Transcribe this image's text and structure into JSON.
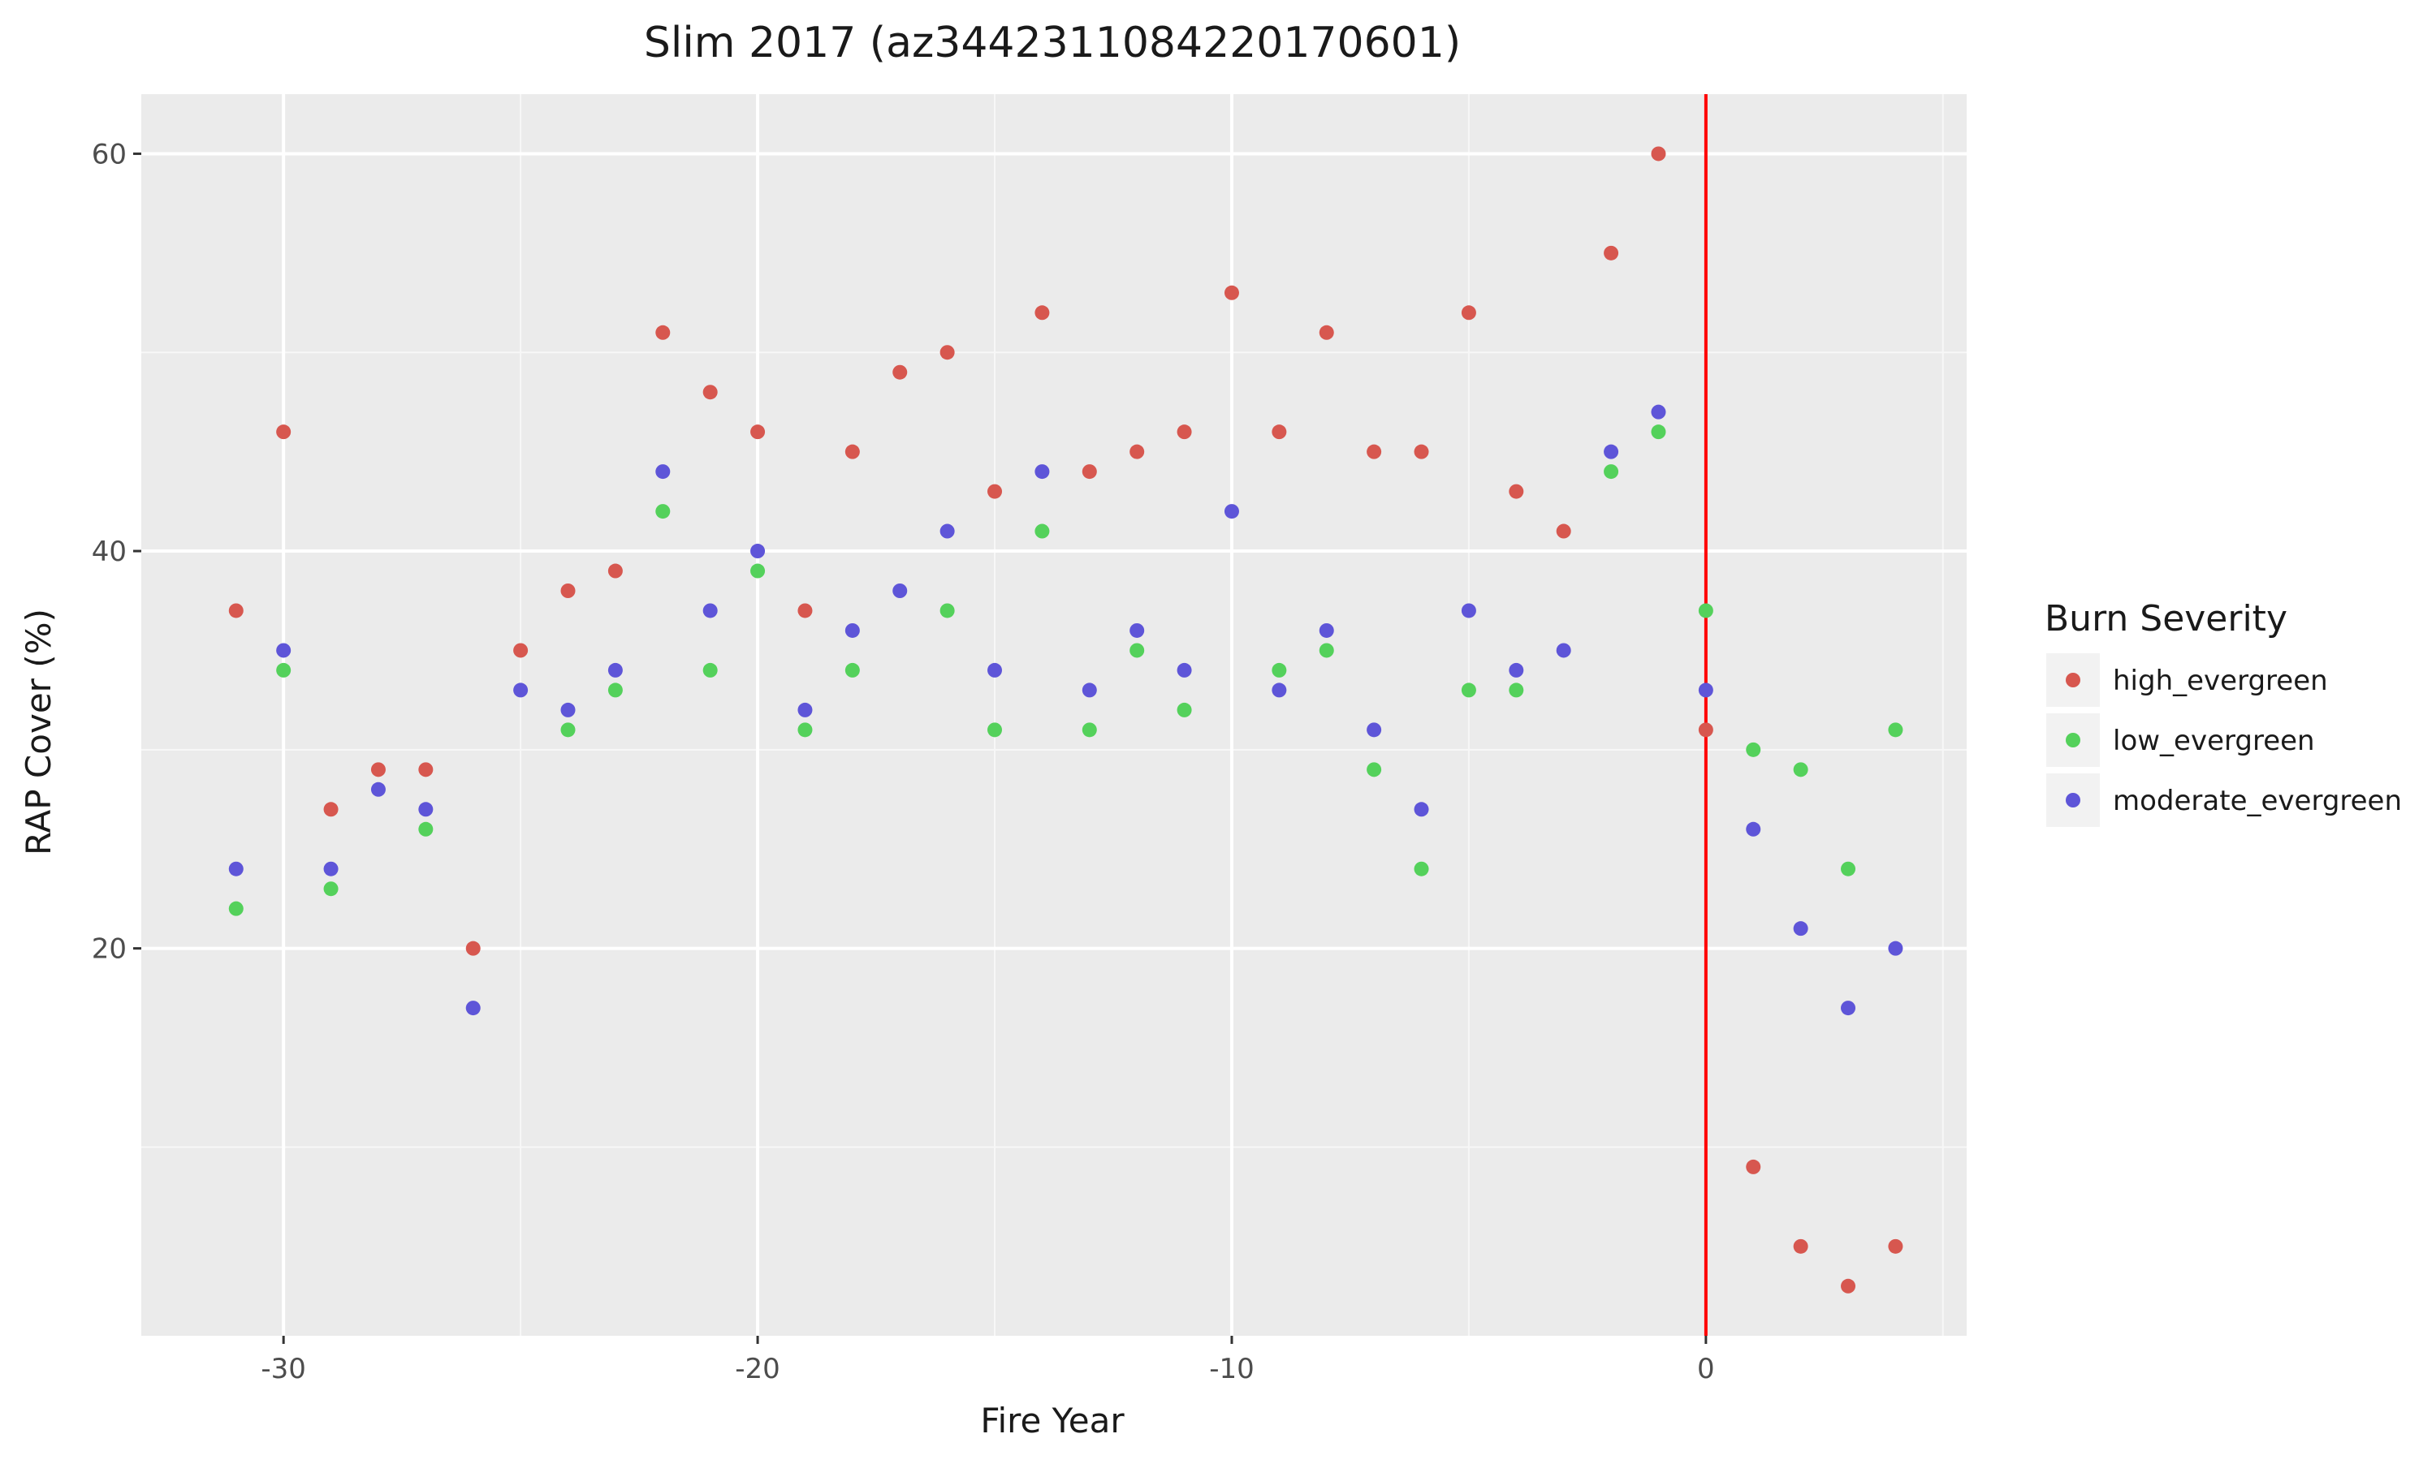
{
  "chart_data": {
    "type": "scatter",
    "title": "Slim 2017 (az34423110842201706​01)",
    "xlabel": "Fire Year",
    "ylabel": "RAP Cover (%)",
    "xlim": [
      -33,
      5.5
    ],
    "ylim": [
      0.5,
      63
    ],
    "x_ticks": [
      -30,
      -20,
      -10,
      0
    ],
    "y_ticks": [
      20,
      40,
      60
    ],
    "grid": true,
    "vline": {
      "x": 0,
      "color": "#ff0000"
    },
    "legend": {
      "title": "Burn Severity",
      "position": "right"
    },
    "series": [
      {
        "name": "high_evergreen",
        "color": "#d7574f",
        "points": [
          [
            -31,
            37
          ],
          [
            -30,
            46
          ],
          [
            -29,
            27
          ],
          [
            -28,
            29
          ],
          [
            -27,
            29
          ],
          [
            -26,
            20
          ],
          [
            -25,
            35
          ],
          [
            -24,
            38
          ],
          [
            -23,
            39
          ],
          [
            -22,
            51
          ],
          [
            -21,
            48
          ],
          [
            -20,
            46
          ],
          [
            -19,
            37
          ],
          [
            -18,
            45
          ],
          [
            -17,
            49
          ],
          [
            -16,
            50
          ],
          [
            -15,
            43
          ],
          [
            -14,
            52
          ],
          [
            -13,
            44
          ],
          [
            -12,
            45
          ],
          [
            -11,
            46
          ],
          [
            -10,
            53
          ],
          [
            -9,
            46
          ],
          [
            -8,
            51
          ],
          [
            -7,
            45
          ],
          [
            -6,
            45
          ],
          [
            -5,
            52
          ],
          [
            -4,
            43
          ],
          [
            -3,
            41
          ],
          [
            -2,
            55
          ],
          [
            -1,
            60
          ],
          [
            0,
            31
          ],
          [
            1,
            9
          ],
          [
            2,
            5
          ],
          [
            3,
            3
          ],
          [
            4,
            5
          ]
        ]
      },
      {
        "name": "low_evergreen",
        "color": "#54d15b",
        "points": [
          [
            -31,
            22
          ],
          [
            -30,
            34
          ],
          [
            -29,
            23
          ],
          [
            -27,
            26
          ],
          [
            -24,
            31
          ],
          [
            -23,
            33
          ],
          [
            -22,
            42
          ],
          [
            -21,
            34
          ],
          [
            -20,
            39
          ],
          [
            -19,
            31
          ],
          [
            -18,
            34
          ],
          [
            -16,
            37
          ],
          [
            -15,
            31
          ],
          [
            -14,
            41
          ],
          [
            -13,
            31
          ],
          [
            -12,
            35
          ],
          [
            -11,
            32
          ],
          [
            -9,
            34
          ],
          [
            -8,
            35
          ],
          [
            -7,
            29
          ],
          [
            -6,
            24
          ],
          [
            -5,
            33
          ],
          [
            -4,
            33
          ],
          [
            -2,
            44
          ],
          [
            -1,
            46
          ],
          [
            0,
            37
          ],
          [
            1,
            30
          ],
          [
            2,
            29
          ],
          [
            3,
            24
          ],
          [
            4,
            31
          ]
        ]
      },
      {
        "name": "moderate_evergreen",
        "color": "#5e55d8",
        "points": [
          [
            -31,
            24
          ],
          [
            -30,
            35
          ],
          [
            -29,
            24
          ],
          [
            -28,
            28
          ],
          [
            -27,
            27
          ],
          [
            -26,
            17
          ],
          [
            -25,
            33
          ],
          [
            -24,
            32
          ],
          [
            -23,
            34
          ],
          [
            -22,
            44
          ],
          [
            -21,
            37
          ],
          [
            -20,
            40
          ],
          [
            -19,
            32
          ],
          [
            -18,
            36
          ],
          [
            -17,
            38
          ],
          [
            -16,
            41
          ],
          [
            -15,
            34
          ],
          [
            -14,
            44
          ],
          [
            -13,
            33
          ],
          [
            -12,
            36
          ],
          [
            -11,
            34
          ],
          [
            -10,
            42
          ],
          [
            -9,
            33
          ],
          [
            -8,
            36
          ],
          [
            -7,
            31
          ],
          [
            -6,
            27
          ],
          [
            -5,
            37
          ],
          [
            -4,
            34
          ],
          [
            -3,
            35
          ],
          [
            -2,
            45
          ],
          [
            -1,
            47
          ],
          [
            0,
            33
          ],
          [
            1,
            26
          ],
          [
            2,
            21
          ],
          [
            3,
            17
          ],
          [
            4,
            20
          ]
        ]
      }
    ]
  }
}
